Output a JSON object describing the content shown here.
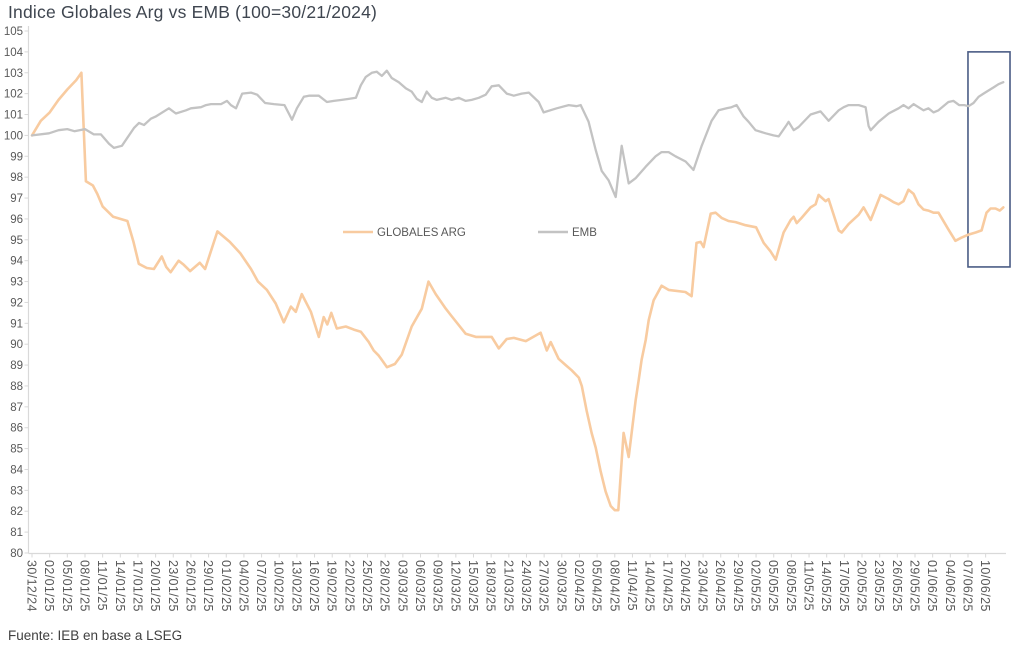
{
  "title": "Indice Globales Arg vs EMB (100=30/21/2024)",
  "source": "Fuente: IEB en base a LSEG",
  "chart_data": {
    "type": "line",
    "title": "Indice Globales Arg vs EMB (100=30/21/2024)",
    "grid": false,
    "legend_position": "center-inside",
    "y_axis": {
      "min": 80,
      "max": 105,
      "step": 1
    },
    "x_tick_labels": [
      "30/12/24",
      "02/01/25",
      "05/01/25",
      "08/01/25",
      "11/01/25",
      "14/01/25",
      "17/01/25",
      "20/01/25",
      "23/01/25",
      "26/01/25",
      "29/01/25",
      "01/02/25",
      "04/02/25",
      "07/02/25",
      "10/02/25",
      "13/02/25",
      "16/02/25",
      "19/02/25",
      "22/02/25",
      "25/02/25",
      "28/02/25",
      "03/03/25",
      "06/03/25",
      "09/03/25",
      "12/03/25",
      "15/03/25",
      "18/03/25",
      "21/03/25",
      "24/03/25",
      "27/03/25",
      "30/03/25",
      "02/04/25",
      "05/04/25",
      "08/04/25",
      "11/04/25",
      "14/04/25",
      "17/04/25",
      "20/04/25",
      "23/04/25",
      "26/04/25",
      "29/04/25",
      "02/05/25",
      "05/05/25",
      "08/05/25",
      "11/05/25",
      "14/05/25",
      "17/05/25",
      "20/05/25",
      "23/05/25",
      "26/05/25",
      "29/05/25",
      "01/06/25",
      "04/06/25",
      "07/06/25",
      "10/06/25"
    ],
    "series": [
      {
        "name": "GLOBALES ARG",
        "color": "#F8CBA0",
        "points": [
          [
            0,
            100.0
          ],
          [
            0.5,
            100.7
          ],
          [
            1,
            101.1
          ],
          [
            1.5,
            101.7
          ],
          [
            2,
            102.2
          ],
          [
            2.5,
            102.65
          ],
          [
            2.8,
            103.0
          ],
          [
            3.05,
            97.8
          ],
          [
            3.45,
            97.6
          ],
          [
            3.7,
            97.2
          ],
          [
            4,
            96.6
          ],
          [
            4.6,
            96.1
          ],
          [
            5.0,
            96.0
          ],
          [
            5.4,
            95.9
          ],
          [
            5.75,
            94.9
          ],
          [
            6.05,
            93.85
          ],
          [
            6.5,
            93.65
          ],
          [
            6.9,
            93.6
          ],
          [
            7.35,
            94.2
          ],
          [
            7.6,
            93.7
          ],
          [
            7.85,
            93.45
          ],
          [
            8.3,
            94.0
          ],
          [
            8.6,
            93.8
          ],
          [
            8.95,
            93.5
          ],
          [
            9.5,
            93.9
          ],
          [
            9.8,
            93.6
          ],
          [
            10.5,
            95.4
          ],
          [
            11.2,
            94.9
          ],
          [
            11.8,
            94.35
          ],
          [
            12.4,
            93.6
          ],
          [
            12.8,
            93.0
          ],
          [
            13.3,
            92.6
          ],
          [
            13.8,
            91.95
          ],
          [
            14.26,
            91.05
          ],
          [
            14.66,
            91.8
          ],
          [
            14.94,
            91.55
          ],
          [
            15.28,
            92.4
          ],
          [
            15.79,
            91.55
          ],
          [
            16.24,
            90.35
          ],
          [
            16.52,
            91.3
          ],
          [
            16.72,
            90.95
          ],
          [
            16.95,
            91.5
          ],
          [
            17.26,
            90.75
          ],
          [
            17.77,
            90.85
          ],
          [
            18.22,
            90.7
          ],
          [
            18.62,
            90.6
          ],
          [
            19.07,
            90.1
          ],
          [
            19.35,
            89.7
          ],
          [
            19.64,
            89.45
          ],
          [
            20.1,
            88.9
          ],
          [
            20.55,
            89.05
          ],
          [
            20.94,
            89.5
          ],
          [
            21.5,
            90.85
          ],
          [
            22.07,
            91.7
          ],
          [
            22.45,
            93.0
          ],
          [
            22.86,
            92.4
          ],
          [
            23.43,
            91.7
          ],
          [
            23.71,
            91.4
          ],
          [
            24.56,
            90.5
          ],
          [
            25.13,
            90.35
          ],
          [
            26.03,
            90.35
          ],
          [
            26.43,
            89.8
          ],
          [
            26.88,
            90.25
          ],
          [
            27.28,
            90.3
          ],
          [
            27.96,
            90.15
          ],
          [
            28.8,
            90.55
          ],
          [
            29.15,
            89.7
          ],
          [
            29.37,
            90.1
          ],
          [
            29.82,
            89.3
          ],
          [
            30.22,
            89.0
          ],
          [
            30.56,
            88.75
          ],
          [
            30.96,
            88.4
          ],
          [
            31.13,
            88.0
          ],
          [
            31.41,
            86.8
          ],
          [
            31.69,
            85.75
          ],
          [
            31.92,
            85.05
          ],
          [
            32.2,
            83.9
          ],
          [
            32.48,
            82.95
          ],
          [
            32.77,
            82.25
          ],
          [
            33.0,
            82.05
          ],
          [
            33.2,
            82.05
          ],
          [
            33.5,
            85.75
          ],
          [
            33.79,
            84.6
          ],
          [
            34.18,
            87.3
          ],
          [
            34.35,
            88.25
          ],
          [
            34.52,
            89.25
          ],
          [
            34.75,
            90.2
          ],
          [
            34.92,
            91.15
          ],
          [
            35.2,
            92.1
          ],
          [
            35.65,
            92.8
          ],
          [
            36.05,
            92.6
          ],
          [
            37.0,
            92.5
          ],
          [
            37.35,
            92.3
          ],
          [
            37.63,
            94.85
          ],
          [
            37.86,
            94.9
          ],
          [
            38.03,
            94.65
          ],
          [
            38.43,
            96.25
          ],
          [
            38.71,
            96.3
          ],
          [
            39.05,
            96.05
          ],
          [
            39.44,
            95.9
          ],
          [
            39.84,
            95.85
          ],
          [
            40.4,
            95.7
          ],
          [
            41.0,
            95.6
          ],
          [
            41.43,
            94.85
          ],
          [
            41.82,
            94.45
          ],
          [
            42.11,
            94.05
          ],
          [
            42.56,
            95.35
          ],
          [
            42.96,
            95.95
          ],
          [
            43.13,
            96.1
          ],
          [
            43.3,
            95.8
          ],
          [
            43.58,
            96.05
          ],
          [
            44.09,
            96.55
          ],
          [
            44.37,
            96.7
          ],
          [
            44.54,
            97.15
          ],
          [
            44.94,
            96.85
          ],
          [
            45.11,
            96.95
          ],
          [
            45.68,
            95.45
          ],
          [
            45.85,
            95.35
          ],
          [
            46.24,
            95.75
          ],
          [
            46.81,
            96.2
          ],
          [
            47.09,
            96.55
          ],
          [
            47.49,
            95.95
          ],
          [
            48.05,
            97.15
          ],
          [
            48.51,
            96.95
          ],
          [
            48.79,
            96.8
          ],
          [
            49.07,
            96.7
          ],
          [
            49.35,
            96.85
          ],
          [
            49.63,
            97.4
          ],
          [
            49.92,
            97.2
          ],
          [
            50.2,
            96.7
          ],
          [
            50.48,
            96.45
          ],
          [
            50.76,
            96.4
          ],
          [
            51.05,
            96.3
          ],
          [
            51.33,
            96.3
          ],
          [
            51.89,
            95.5
          ],
          [
            52.29,
            94.95
          ],
          [
            52.63,
            95.1
          ],
          [
            53.03,
            95.25
          ],
          [
            53.43,
            95.35
          ],
          [
            53.77,
            95.45
          ],
          [
            54.05,
            96.3
          ],
          [
            54.28,
            96.5
          ],
          [
            54.56,
            96.5
          ],
          [
            54.8,
            96.4
          ],
          [
            55.0,
            96.55
          ]
        ]
      },
      {
        "name": "EMB",
        "color": "#C3C3C3",
        "points": [
          [
            0,
            100.0
          ],
          [
            0.96,
            100.1
          ],
          [
            1.5,
            100.25
          ],
          [
            2,
            100.3
          ],
          [
            2.4,
            100.2
          ],
          [
            3.0,
            100.3
          ],
          [
            3.5,
            100.05
          ],
          [
            3.9,
            100.05
          ],
          [
            4.36,
            99.6
          ],
          [
            4.64,
            99.4
          ],
          [
            5.09,
            99.5
          ],
          [
            5.77,
            100.35
          ],
          [
            6.06,
            100.6
          ],
          [
            6.34,
            100.5
          ],
          [
            6.73,
            100.8
          ],
          [
            7.0,
            100.9
          ],
          [
            7.75,
            101.3
          ],
          [
            8.15,
            101.05
          ],
          [
            8.72,
            101.2
          ],
          [
            9.0,
            101.3
          ],
          [
            9.57,
            101.35
          ],
          [
            9.85,
            101.45
          ],
          [
            10.13,
            101.5
          ],
          [
            10.7,
            101.5
          ],
          [
            11.04,
            101.65
          ],
          [
            11.26,
            101.45
          ],
          [
            11.55,
            101.3
          ],
          [
            11.9,
            102.0
          ],
          [
            12.4,
            102.05
          ],
          [
            12.75,
            101.95
          ],
          [
            13.2,
            101.55
          ],
          [
            13.7,
            101.5
          ],
          [
            14.3,
            101.45
          ],
          [
            14.72,
            100.75
          ],
          [
            15.0,
            101.3
          ],
          [
            15.39,
            101.85
          ],
          [
            15.68,
            101.9
          ],
          [
            16.24,
            101.9
          ],
          [
            16.7,
            101.6
          ],
          [
            17.09,
            101.65
          ],
          [
            17.54,
            101.7
          ],
          [
            17.94,
            101.75
          ],
          [
            18.34,
            101.8
          ],
          [
            18.62,
            102.4
          ],
          [
            18.9,
            102.8
          ],
          [
            19.24,
            103.0
          ],
          [
            19.52,
            103.05
          ],
          [
            19.81,
            102.85
          ],
          [
            20.09,
            103.1
          ],
          [
            20.37,
            102.75
          ],
          [
            20.77,
            102.55
          ],
          [
            21.17,
            102.25
          ],
          [
            21.5,
            102.1
          ],
          [
            21.79,
            101.75
          ],
          [
            22.07,
            101.6
          ],
          [
            22.35,
            102.1
          ],
          [
            22.64,
            101.8
          ],
          [
            22.92,
            101.7
          ],
          [
            23.43,
            101.8
          ],
          [
            23.77,
            101.7
          ],
          [
            24.16,
            101.8
          ],
          [
            24.56,
            101.65
          ],
          [
            24.9,
            101.7
          ],
          [
            25.3,
            101.8
          ],
          [
            25.69,
            101.95
          ],
          [
            26.03,
            102.35
          ],
          [
            26.43,
            102.4
          ],
          [
            26.88,
            102.0
          ],
          [
            27.28,
            101.9
          ],
          [
            27.73,
            102.0
          ],
          [
            28.13,
            102.05
          ],
          [
            28.69,
            101.6
          ],
          [
            28.97,
            101.1
          ],
          [
            29.71,
            101.3
          ],
          [
            30.39,
            101.45
          ],
          [
            30.84,
            101.4
          ],
          [
            31.07,
            101.45
          ],
          [
            31.52,
            100.65
          ],
          [
            31.92,
            99.3
          ],
          [
            32.26,
            98.3
          ],
          [
            32.65,
            97.85
          ],
          [
            33.05,
            97.05
          ],
          [
            33.39,
            99.5
          ],
          [
            33.79,
            97.7
          ],
          [
            34.18,
            97.95
          ],
          [
            34.75,
            98.5
          ],
          [
            35.31,
            99.0
          ],
          [
            35.65,
            99.2
          ],
          [
            36.05,
            99.2
          ],
          [
            36.44,
            99.0
          ],
          [
            37.01,
            98.75
          ],
          [
            37.46,
            98.35
          ],
          [
            37.92,
            99.5
          ],
          [
            38.48,
            100.7
          ],
          [
            38.88,
            101.2
          ],
          [
            39.33,
            101.3
          ],
          [
            39.61,
            101.35
          ],
          [
            39.9,
            101.45
          ],
          [
            40.3,
            100.9
          ],
          [
            40.58,
            100.65
          ],
          [
            40.97,
            100.25
          ],
          [
            41.54,
            100.1
          ],
          [
            41.99,
            100.0
          ],
          [
            42.28,
            99.95
          ],
          [
            42.73,
            100.5
          ],
          [
            42.84,
            100.65
          ],
          [
            43.13,
            100.25
          ],
          [
            43.41,
            100.4
          ],
          [
            44.09,
            101.0
          ],
          [
            44.65,
            101.15
          ],
          [
            45.11,
            100.7
          ],
          [
            45.68,
            101.2
          ],
          [
            45.96,
            101.35
          ],
          [
            46.24,
            101.45
          ],
          [
            46.81,
            101.45
          ],
          [
            47.2,
            101.35
          ],
          [
            47.37,
            100.45
          ],
          [
            47.49,
            100.25
          ],
          [
            47.94,
            100.65
          ],
          [
            48.51,
            101.05
          ],
          [
            49.07,
            101.3
          ],
          [
            49.35,
            101.45
          ],
          [
            49.63,
            101.3
          ],
          [
            49.92,
            101.5
          ],
          [
            50.2,
            101.35
          ],
          [
            50.48,
            101.2
          ],
          [
            50.76,
            101.3
          ],
          [
            51.05,
            101.1
          ],
          [
            51.33,
            101.2
          ],
          [
            51.89,
            101.6
          ],
          [
            52.18,
            101.65
          ],
          [
            52.5,
            101.45
          ],
          [
            52.8,
            101.45
          ],
          [
            53.03,
            101.4
          ],
          [
            53.31,
            101.55
          ],
          [
            53.6,
            101.85
          ],
          [
            53.88,
            102.0
          ],
          [
            54.16,
            102.15
          ],
          [
            54.45,
            102.3
          ],
          [
            54.73,
            102.45
          ],
          [
            55.0,
            102.55
          ]
        ]
      }
    ],
    "highlight_box": {
      "from_idx": 53.0,
      "to_idx": 55.38,
      "top_value": 104.0,
      "bottom_value": 93.7,
      "border_color": "#4A5C85"
    },
    "axis_color": "#D9D9D9",
    "tick_label_color": "#595959"
  }
}
